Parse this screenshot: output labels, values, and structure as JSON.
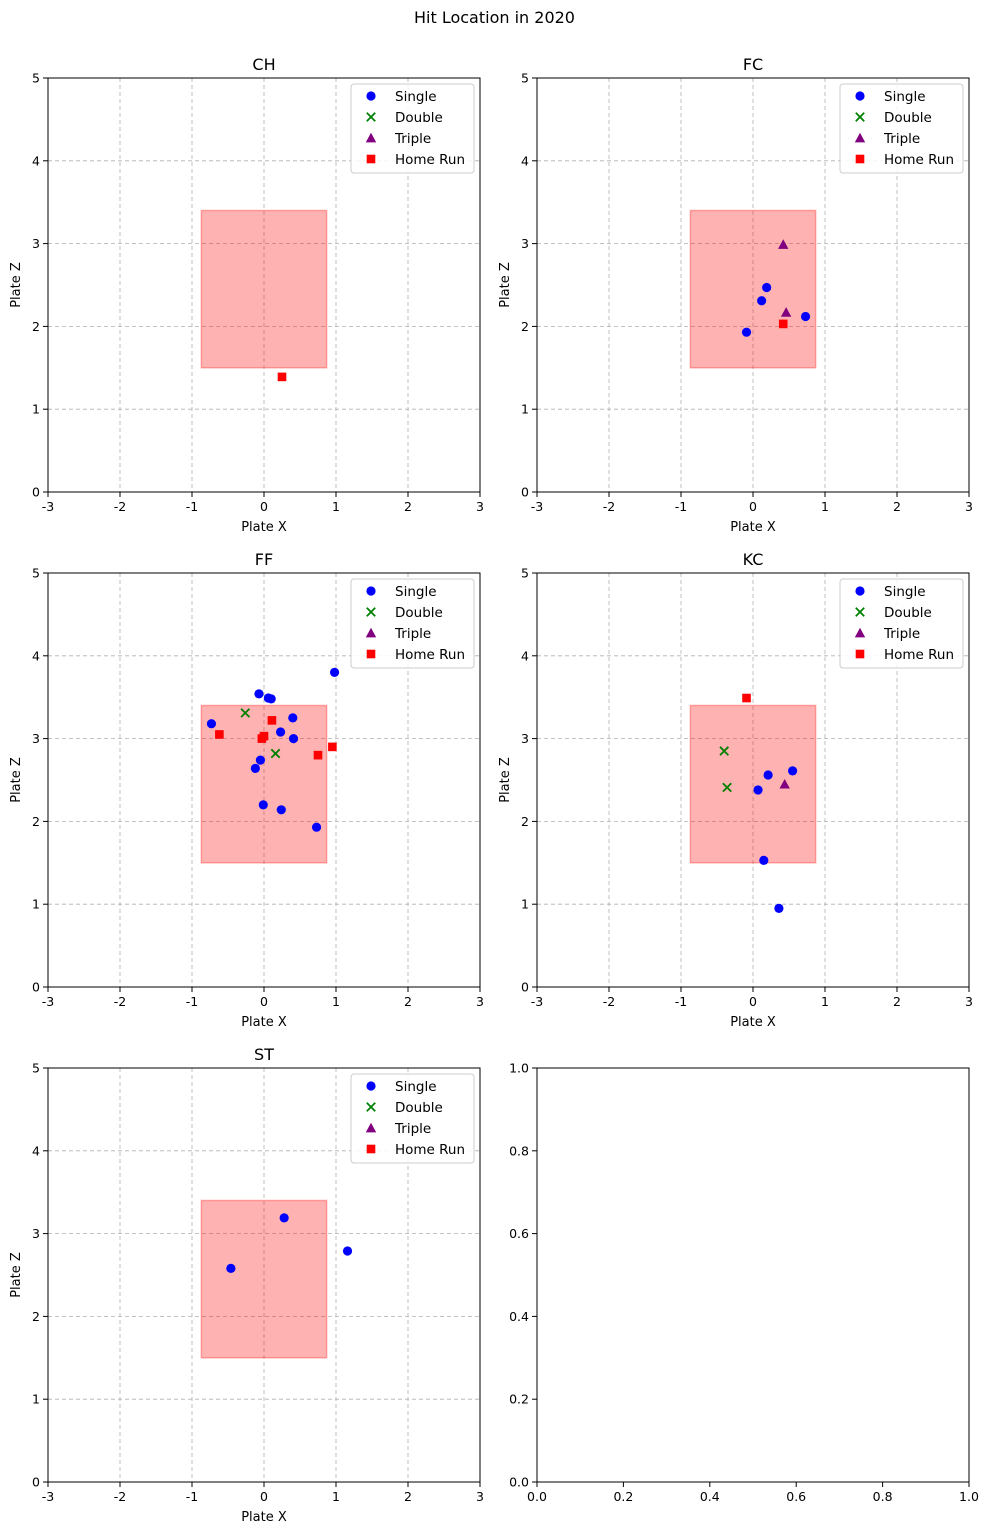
{
  "figure": {
    "suptitle": "Hit Location in 2020"
  },
  "chart_data": [
    {
      "type": "scatter",
      "title": "CH",
      "xlabel": "Plate X",
      "ylabel": "Plate Z",
      "xlim": [
        -3,
        3
      ],
      "ylim": [
        0,
        5
      ],
      "xticks": [
        -3,
        -2,
        -1,
        0,
        1,
        2,
        3
      ],
      "yticks": [
        0,
        1,
        2,
        3,
        4,
        5
      ],
      "grid": true,
      "legend": "upper-right",
      "strike_zone": {
        "x": [
          -0.87,
          0.87
        ],
        "z": [
          1.5,
          3.4
        ],
        "color": "#ff0000",
        "alpha": 0.3
      },
      "series": [
        {
          "name": "Single",
          "marker": "circle",
          "color": "#0000ff",
          "points": []
        },
        {
          "name": "Double",
          "marker": "x",
          "color": "#008000",
          "points": []
        },
        {
          "name": "Triple",
          "marker": "triangle",
          "color": "#800080",
          "points": []
        },
        {
          "name": "Home Run",
          "marker": "square",
          "color": "#ff0000",
          "points": [
            [
              0.25,
              1.39
            ]
          ]
        }
      ]
    },
    {
      "type": "scatter",
      "title": "FC",
      "xlabel": "Plate X",
      "ylabel": "Plate Z",
      "xlim": [
        -3,
        3
      ],
      "ylim": [
        0,
        5
      ],
      "xticks": [
        -3,
        -2,
        -1,
        0,
        1,
        2,
        3
      ],
      "yticks": [
        0,
        1,
        2,
        3,
        4,
        5
      ],
      "grid": true,
      "legend": "upper-right",
      "strike_zone": {
        "x": [
          -0.87,
          0.87
        ],
        "z": [
          1.5,
          3.4
        ],
        "color": "#ff0000",
        "alpha": 0.3
      },
      "series": [
        {
          "name": "Single",
          "marker": "circle",
          "color": "#0000ff",
          "points": [
            [
              0.19,
              2.47
            ],
            [
              0.12,
              2.31
            ],
            [
              0.73,
              2.12
            ],
            [
              -0.09,
              1.93
            ]
          ]
        },
        {
          "name": "Double",
          "marker": "x",
          "color": "#008000",
          "points": []
        },
        {
          "name": "Triple",
          "marker": "triangle",
          "color": "#800080",
          "points": [
            [
              0.42,
              2.99
            ],
            [
              0.46,
              2.17
            ]
          ]
        },
        {
          "name": "Home Run",
          "marker": "square",
          "color": "#ff0000",
          "points": [
            [
              0.42,
              2.03
            ]
          ]
        }
      ]
    },
    {
      "type": "scatter",
      "title": "FF",
      "xlabel": "Plate X",
      "ylabel": "Plate Z",
      "xlim": [
        -3,
        3
      ],
      "ylim": [
        0,
        5
      ],
      "xticks": [
        -3,
        -2,
        -1,
        0,
        1,
        2,
        3
      ],
      "yticks": [
        0,
        1,
        2,
        3,
        4,
        5
      ],
      "grid": true,
      "legend": "upper-right",
      "strike_zone": {
        "x": [
          -0.87,
          0.87
        ],
        "z": [
          1.5,
          3.4
        ],
        "color": "#ff0000",
        "alpha": 0.3
      },
      "series": [
        {
          "name": "Single",
          "marker": "circle",
          "color": "#0000ff",
          "points": [
            [
              -0.07,
              3.54
            ],
            [
              0.06,
              3.49
            ],
            [
              0.1,
              3.48
            ],
            [
              0.98,
              3.8
            ],
            [
              -0.73,
              3.18
            ],
            [
              0.4,
              3.25
            ],
            [
              0.23,
              3.08
            ],
            [
              0.41,
              3.0
            ],
            [
              -0.05,
              2.74
            ],
            [
              -0.12,
              2.64
            ],
            [
              -0.01,
              2.2
            ],
            [
              0.24,
              2.14
            ],
            [
              0.73,
              1.93
            ]
          ]
        },
        {
          "name": "Double",
          "marker": "x",
          "color": "#008000",
          "points": [
            [
              -0.26,
              3.31
            ],
            [
              0.16,
              2.82
            ]
          ]
        },
        {
          "name": "Triple",
          "marker": "triangle",
          "color": "#800080",
          "points": []
        },
        {
          "name": "Home Run",
          "marker": "square",
          "color": "#ff0000",
          "points": [
            [
              -0.62,
              3.05
            ],
            [
              -0.03,
              3.0
            ],
            [
              0.0,
              3.03
            ],
            [
              0.11,
              3.22
            ],
            [
              0.75,
              2.8
            ],
            [
              0.95,
              2.9
            ]
          ]
        }
      ]
    },
    {
      "type": "scatter",
      "title": "KC",
      "xlabel": "Plate X",
      "ylabel": "Plate Z",
      "xlim": [
        -3,
        3
      ],
      "ylim": [
        0,
        5
      ],
      "xticks": [
        -3,
        -2,
        -1,
        0,
        1,
        2,
        3
      ],
      "yticks": [
        0,
        1,
        2,
        3,
        4,
        5
      ],
      "grid": true,
      "legend": "upper-right",
      "strike_zone": {
        "x": [
          -0.87,
          0.87
        ],
        "z": [
          1.5,
          3.4
        ],
        "color": "#ff0000",
        "alpha": 0.3
      },
      "series": [
        {
          "name": "Single",
          "marker": "circle",
          "color": "#0000ff",
          "points": [
            [
              0.07,
              2.38
            ],
            [
              0.21,
              2.56
            ],
            [
              0.55,
              2.61
            ],
            [
              0.15,
              1.53
            ],
            [
              0.36,
              0.95
            ]
          ]
        },
        {
          "name": "Double",
          "marker": "x",
          "color": "#008000",
          "points": [
            [
              -0.4,
              2.85
            ],
            [
              -0.36,
              2.41
            ]
          ]
        },
        {
          "name": "Triple",
          "marker": "triangle",
          "color": "#800080",
          "points": [
            [
              0.44,
              2.45
            ]
          ]
        },
        {
          "name": "Home Run",
          "marker": "square",
          "color": "#ff0000",
          "points": [
            [
              -0.09,
              3.49
            ]
          ]
        }
      ]
    },
    {
      "type": "scatter",
      "title": "ST",
      "xlabel": "Plate X",
      "ylabel": "Plate Z",
      "xlim": [
        -3,
        3
      ],
      "ylim": [
        0,
        5
      ],
      "xticks": [
        -3,
        -2,
        -1,
        0,
        1,
        2,
        3
      ],
      "yticks": [
        0,
        1,
        2,
        3,
        4,
        5
      ],
      "grid": true,
      "legend": "upper-right",
      "strike_zone": {
        "x": [
          -0.87,
          0.87
        ],
        "z": [
          1.5,
          3.4
        ],
        "color": "#ff0000",
        "alpha": 0.3
      },
      "series": [
        {
          "name": "Single",
          "marker": "circle",
          "color": "#0000ff",
          "points": [
            [
              0.28,
              3.19
            ],
            [
              1.16,
              2.79
            ],
            [
              -0.46,
              2.58
            ]
          ]
        },
        {
          "name": "Double",
          "marker": "x",
          "color": "#008000",
          "points": []
        },
        {
          "name": "Triple",
          "marker": "triangle",
          "color": "#800080",
          "points": []
        },
        {
          "name": "Home Run",
          "marker": "square",
          "color": "#ff0000",
          "points": []
        }
      ]
    },
    {
      "type": "scatter",
      "title": "",
      "xlabel": "",
      "ylabel": "",
      "xlim": [
        0,
        1
      ],
      "ylim": [
        0,
        1
      ],
      "xticks": [
        "0.0",
        "0.2",
        "0.4",
        "0.6",
        "0.8",
        "1.0"
      ],
      "yticks": [
        "0.0",
        "0.2",
        "0.4",
        "0.6",
        "0.8",
        "1.0"
      ],
      "grid": false,
      "legend": "none",
      "series": []
    }
  ]
}
